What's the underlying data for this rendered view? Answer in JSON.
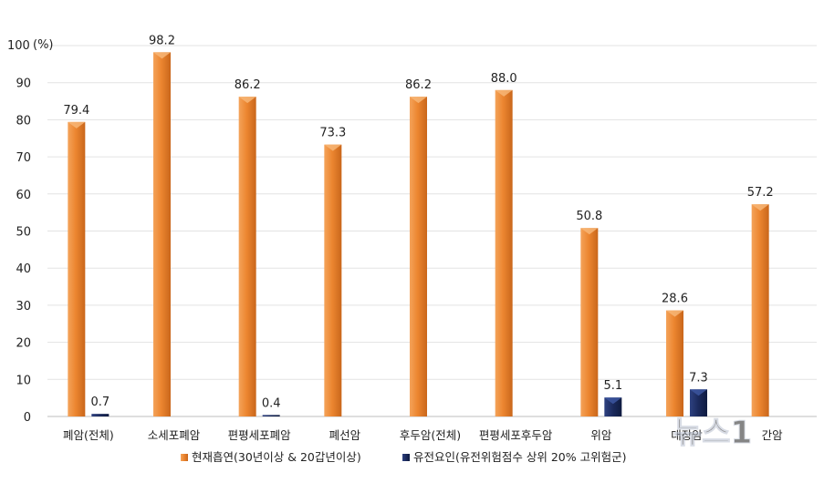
{
  "chart_data": {
    "type": "bar",
    "unit_label": "(%)",
    "ylim": [
      0,
      100
    ],
    "yticks": [
      0,
      10,
      20,
      30,
      40,
      50,
      60,
      70,
      80,
      90,
      100
    ],
    "grid": true,
    "legend_position": "bottom",
    "categories": [
      "폐암(전체)",
      "소세포폐암",
      "편평세포폐암",
      "폐선암",
      "후두암(전체)",
      "편평세포후두암",
      "위암",
      "대장암",
      "간암"
    ],
    "series": [
      {
        "name": "현재흡연(30년이상 & 20갑년이상)",
        "color": "#ED8A34",
        "values": [
          79.4,
          98.2,
          86.2,
          73.3,
          86.2,
          88.0,
          50.8,
          28.6,
          57.2
        ],
        "labels": [
          "79.4",
          "98.2",
          "86.2",
          "73.3",
          "86.2",
          "88.0",
          "50.8",
          "28.6",
          "57.2"
        ]
      },
      {
        "name": "유전요인(유전위험점수 상위 20% 고위험군)",
        "color": "#1B2A5C",
        "values": [
          0.7,
          null,
          0.4,
          null,
          null,
          null,
          5.1,
          7.3,
          null
        ],
        "labels": [
          "0.7",
          "",
          "0.4",
          "",
          "",
          "",
          "5.1",
          "7.3",
          ""
        ]
      }
    ]
  },
  "watermark": {
    "text": "뉴스1"
  }
}
